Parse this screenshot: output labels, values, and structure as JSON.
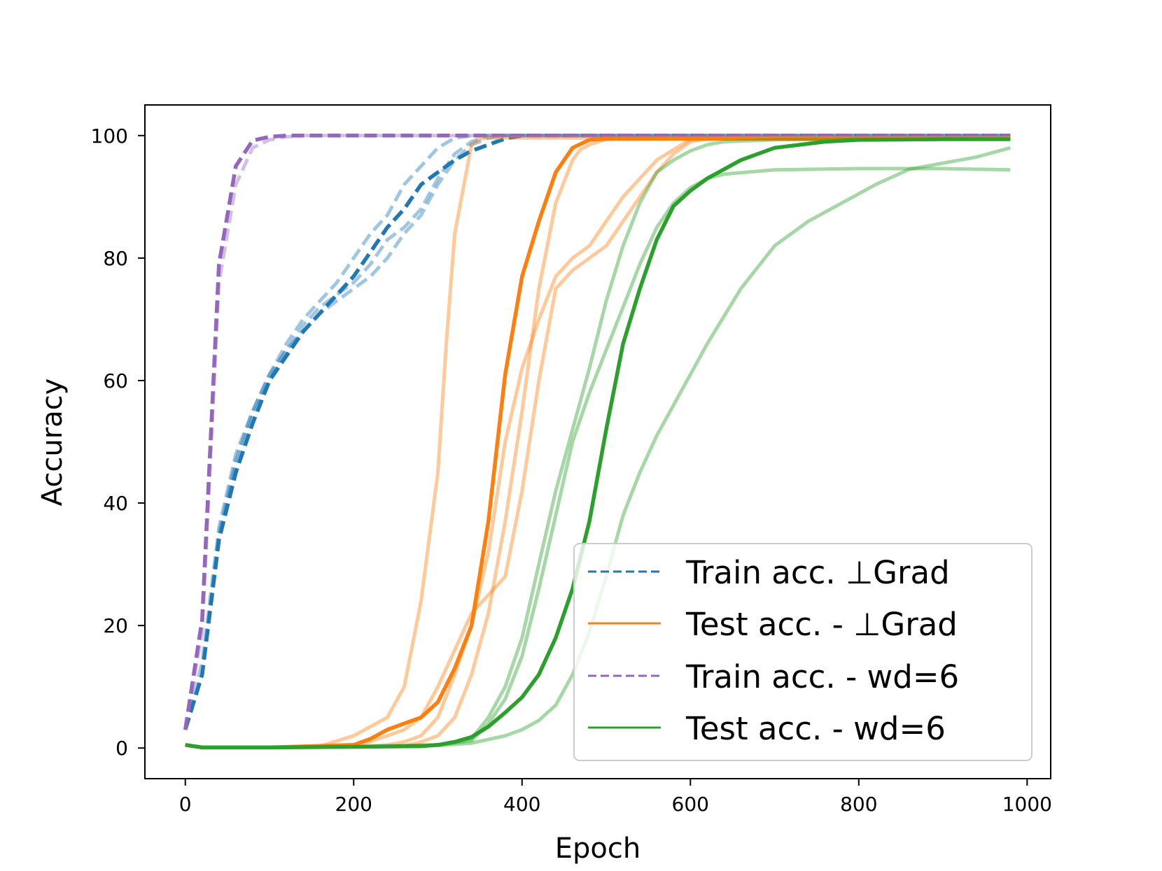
{
  "chart_data": {
    "type": "line",
    "xlabel": "Epoch",
    "ylabel": "Accuracy",
    "xlim": [
      -48,
      1028
    ],
    "ylim": [
      -5,
      105
    ],
    "xticks": [
      0,
      200,
      400,
      600,
      800,
      1000
    ],
    "yticks": [
      0,
      20,
      40,
      60,
      80,
      100
    ],
    "grid": false,
    "legend_position": "lower right",
    "colors": {
      "train_grad": "#1f77b4",
      "test_grad": "#ff7f0e",
      "train_wd": "#9467bd",
      "test_wd": "#2ca02c"
    },
    "legend": [
      {
        "label": "Train acc.  ⊥Grad",
        "color_key": "train_grad",
        "style": "dashed"
      },
      {
        "label": "Test acc. -   ⊥Grad",
        "color_key": "test_grad",
        "style": "solid"
      },
      {
        "label": "Train acc. - wd=6",
        "color_key": "train_wd",
        "style": "dashed"
      },
      {
        "label": "Test acc. - wd=6",
        "color_key": "test_wd",
        "style": "solid"
      }
    ],
    "series": [
      {
        "color_key": "train_grad",
        "style": "dashed",
        "faint": true,
        "x": [
          0,
          20,
          40,
          60,
          80,
          100,
          120,
          140,
          160,
          180,
          200,
          220,
          240,
          260,
          280,
          300,
          320,
          340,
          360,
          380,
          400,
          440,
          500,
          600,
          700,
          800,
          900,
          980
        ],
        "y": [
          3,
          14,
          36,
          48,
          55,
          61,
          66,
          70,
          73,
          76,
          80,
          84,
          87,
          92,
          95,
          98,
          99.6,
          100,
          100,
          100,
          100,
          100,
          100,
          100,
          100,
          100,
          100,
          100
        ]
      },
      {
        "color_key": "train_grad",
        "style": "dashed",
        "faint": true,
        "x": [
          0,
          20,
          40,
          60,
          80,
          100,
          120,
          140,
          160,
          180,
          200,
          220,
          240,
          260,
          280,
          300,
          320,
          340,
          360,
          380,
          400,
          440,
          500,
          600,
          700,
          800,
          900,
          980
        ],
        "y": [
          3,
          12,
          35,
          47,
          55,
          61,
          65,
          69,
          72,
          74,
          76,
          79,
          83,
          85,
          88,
          93,
          97,
          99,
          100,
          100,
          100,
          100,
          100,
          100,
          100,
          100,
          100,
          100
        ]
      },
      {
        "color_key": "train_grad",
        "style": "dashed",
        "faint": true,
        "x": [
          0,
          20,
          40,
          60,
          80,
          100,
          120,
          140,
          160,
          180,
          200,
          220,
          240,
          260,
          280,
          300,
          320,
          340,
          360,
          380,
          400,
          440,
          500,
          600,
          700,
          800,
          900,
          980
        ],
        "y": [
          3,
          12,
          34,
          46,
          54,
          60,
          65,
          68,
          71,
          73,
          75,
          77,
          80,
          84,
          87,
          92,
          96,
          98.5,
          99.6,
          100,
          100,
          100,
          100,
          100,
          100,
          100,
          100,
          100
        ]
      },
      {
        "color_key": "train_grad",
        "style": "dashed",
        "faint": false,
        "x": [
          0,
          20,
          40,
          60,
          80,
          100,
          120,
          140,
          160,
          180,
          200,
          220,
          240,
          260,
          280,
          300,
          320,
          340,
          360,
          380,
          400,
          420,
          440,
          500,
          600,
          700,
          800,
          900,
          980
        ],
        "y": [
          3,
          12,
          34,
          45,
          53,
          60,
          64,
          68,
          71,
          74,
          77,
          81,
          85,
          88,
          92,
          94,
          96,
          97.5,
          98.5,
          99.5,
          100,
          100,
          100,
          100,
          100,
          100,
          100,
          100,
          100
        ]
      },
      {
        "color_key": "train_wd",
        "style": "dashed",
        "faint": true,
        "x": [
          0,
          20,
          40,
          60,
          80,
          100,
          120,
          140,
          200,
          300,
          400,
          500,
          600,
          700,
          800,
          900,
          980
        ],
        "y": [
          3,
          19,
          76,
          92,
          98,
          99.3,
          99.8,
          100,
          100,
          100,
          100,
          100,
          100,
          100,
          100,
          100,
          100
        ]
      },
      {
        "color_key": "train_wd",
        "style": "dashed",
        "faint": false,
        "x": [
          0,
          20,
          40,
          60,
          80,
          100,
          120,
          140,
          200,
          300,
          400,
          500,
          600,
          700,
          800,
          900,
          980
        ],
        "y": [
          3,
          21,
          79,
          95,
          99.2,
          99.8,
          100,
          100,
          100,
          100,
          100,
          100,
          100,
          100,
          100,
          100,
          100
        ]
      },
      {
        "color_key": "test_grad",
        "style": "solid",
        "faint": true,
        "x": [
          0,
          20,
          100,
          160,
          200,
          240,
          260,
          280,
          300,
          310,
          320,
          340,
          350,
          360,
          400,
          500,
          600,
          700,
          800,
          900,
          980
        ],
        "y": [
          0.5,
          0.1,
          0.1,
          0.3,
          2,
          5,
          10,
          24,
          45,
          66,
          84,
          98.5,
          99.5,
          99.6,
          99.6,
          99.6,
          99.6,
          99.6,
          99.6,
          99.6,
          99.6
        ]
      },
      {
        "color_key": "test_grad",
        "style": "solid",
        "faint": true,
        "x": [
          0,
          20,
          100,
          200,
          240,
          260,
          280,
          300,
          320,
          340,
          360,
          380,
          400,
          420,
          440,
          460,
          480,
          500,
          520,
          540,
          560,
          580,
          600,
          620,
          640,
          700,
          800,
          900,
          980
        ],
        "y": [
          0.5,
          0.1,
          0.1,
          0.2,
          2,
          3,
          5,
          10,
          16,
          22,
          25,
          28,
          42,
          60,
          75,
          78,
          80,
          82,
          86,
          90,
          94,
          97,
          99,
          99.5,
          99.6,
          99.6,
          99.6,
          99.6,
          99.6
        ]
      },
      {
        "color_key": "test_grad",
        "style": "solid",
        "faint": true,
        "x": [
          0,
          20,
          100,
          200,
          240,
          260,
          280,
          300,
          320,
          340,
          360,
          380,
          400,
          420,
          440,
          460,
          480,
          500,
          520,
          560,
          600,
          700,
          800,
          900,
          980
        ],
        "y": [
          0.5,
          0.1,
          0.1,
          0.2,
          0.5,
          1,
          2,
          5,
          12,
          20,
          32,
          50,
          62,
          70,
          77,
          80,
          82,
          86,
          90,
          96,
          99.4,
          99.6,
          99.6,
          99.6,
          99.6
        ]
      },
      {
        "color_key": "test_grad",
        "style": "solid",
        "faint": true,
        "x": [
          0,
          20,
          100,
          200,
          260,
          280,
          300,
          320,
          340,
          360,
          380,
          400,
          420,
          440,
          460,
          470,
          480,
          500,
          540,
          600,
          700,
          800,
          900,
          980
        ],
        "y": [
          0.5,
          0.1,
          0.1,
          0.2,
          0.3,
          1,
          2,
          5,
          12,
          22,
          37,
          55,
          75,
          89,
          96,
          97.8,
          98.5,
          99.4,
          99.6,
          99.6,
          99.6,
          99.6,
          99.6,
          99.6
        ]
      },
      {
        "color_key": "test_grad",
        "style": "solid",
        "faint": false,
        "x": [
          0,
          20,
          100,
          200,
          220,
          240,
          260,
          280,
          300,
          320,
          340,
          360,
          380,
          400,
          420,
          440,
          460,
          480,
          500,
          540,
          600,
          700,
          800,
          900,
          980
        ],
        "y": [
          0.5,
          0.1,
          0.1,
          0.5,
          1.5,
          3,
          4,
          5,
          7.5,
          13,
          20,
          37,
          61,
          77,
          86,
          94,
          98,
          99.3,
          99.5,
          99.5,
          99.5,
          99.5,
          99.5,
          99.5,
          99.5
        ]
      },
      {
        "color_key": "test_wd",
        "style": "solid",
        "faint": true,
        "x": [
          0,
          20,
          100,
          200,
          300,
          340,
          360,
          380,
          400,
          420,
          440,
          460,
          480,
          500,
          520,
          540,
          560,
          580,
          600,
          620,
          640,
          700,
          800,
          900,
          980
        ],
        "y": [
          0.5,
          0.1,
          0.1,
          0.2,
          0.5,
          1.5,
          5,
          10,
          18,
          30,
          42,
          52,
          62,
          73,
          82,
          89,
          94,
          96,
          97.5,
          98.5,
          99,
          99.3,
          99.4,
          99.4,
          99.4
        ]
      },
      {
        "color_key": "test_wd",
        "style": "solid",
        "faint": true,
        "x": [
          0,
          20,
          100,
          200,
          300,
          340,
          360,
          380,
          400,
          420,
          440,
          460,
          480,
          500,
          520,
          540,
          560,
          580,
          600,
          620,
          640,
          700,
          800,
          900,
          980
        ],
        "y": [
          0.5,
          0.1,
          0.1,
          0.2,
          0.5,
          1.2,
          4,
          8,
          15,
          26,
          38,
          50,
          58,
          65,
          72,
          79,
          85,
          89,
          91.5,
          93,
          93.7,
          94.4,
          94.6,
          94.6,
          94.4
        ]
      },
      {
        "color_key": "test_wd",
        "style": "solid",
        "faint": true,
        "x": [
          0,
          20,
          100,
          200,
          300,
          340,
          380,
          400,
          420,
          440,
          460,
          480,
          500,
          520,
          540,
          560,
          580,
          600,
          620,
          660,
          700,
          740,
          780,
          820,
          860,
          900,
          940,
          980
        ],
        "y": [
          0.5,
          0.1,
          0.1,
          0.2,
          0.4,
          0.8,
          2,
          3,
          4.5,
          7,
          12,
          19,
          28,
          38,
          45,
          51,
          56,
          61,
          66,
          75,
          82,
          86,
          89,
          92,
          94.5,
          95.5,
          96.5,
          98
        ]
      },
      {
        "color_key": "test_wd",
        "style": "solid",
        "faint": false,
        "x": [
          0,
          20,
          100,
          200,
          280,
          300,
          320,
          340,
          360,
          380,
          400,
          420,
          440,
          460,
          480,
          500,
          520,
          540,
          560,
          580,
          600,
          620,
          660,
          700,
          760,
          800,
          900,
          980
        ],
        "y": [
          0.5,
          0.1,
          0.1,
          0.2,
          0.3,
          0.5,
          1,
          1.8,
          3.5,
          5.8,
          8.3,
          12,
          18,
          26,
          37,
          52,
          66,
          75,
          83,
          88.5,
          91,
          93,
          96,
          98,
          99,
          99.3,
          99.4,
          99.4
        ]
      }
    ]
  }
}
